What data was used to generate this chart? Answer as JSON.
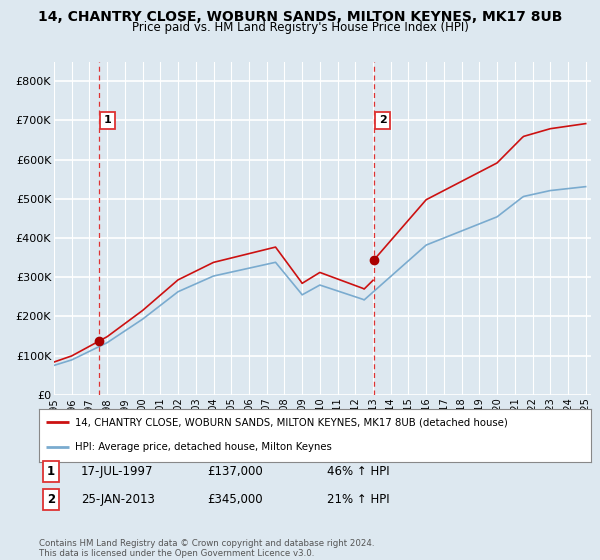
{
  "title": "14, CHANTRY CLOSE, WOBURN SANDS, MILTON KEYNES, MK17 8UB",
  "subtitle": "Price paid vs. HM Land Registry's House Price Index (HPI)",
  "bg_color": "#dde8f0",
  "plot_bg": "#dde8f0",
  "ylim": [
    0,
    850000
  ],
  "yticks": [
    0,
    100000,
    200000,
    300000,
    400000,
    500000,
    600000,
    700000,
    800000
  ],
  "ytick_labels": [
    "£0",
    "£100K",
    "£200K",
    "£300K",
    "£400K",
    "£500K",
    "£600K",
    "£700K",
    "£800K"
  ],
  "xlim_min": 1995.0,
  "xlim_max": 2025.3,
  "xtick_years": [
    1995,
    1996,
    1997,
    1998,
    1999,
    2000,
    2001,
    2002,
    2003,
    2004,
    2005,
    2006,
    2007,
    2008,
    2009,
    2010,
    2011,
    2012,
    2013,
    2014,
    2015,
    2016,
    2017,
    2018,
    2019,
    2020,
    2021,
    2022,
    2023,
    2024,
    2025
  ],
  "purchase1_x": 1997.54,
  "purchase1_y": 137000,
  "purchase2_x": 2013.07,
  "purchase2_y": 345000,
  "line_red_color": "#cc1111",
  "line_blue_color": "#7aabcf",
  "vline_color": "#dd3333",
  "marker_color": "#aa0000",
  "line1_label": "14, CHANTRY CLOSE, WOBURN SANDS, MILTON KEYNES, MK17 8UB (detached house)",
  "line2_label": "HPI: Average price, detached house, Milton Keynes",
  "ann1_label": "1",
  "ann1_date": "17-JUL-1997",
  "ann1_price": "£137,000",
  "ann1_hpi": "46% ↑ HPI",
  "ann2_label": "2",
  "ann2_date": "25-JAN-2013",
  "ann2_price": "£345,000",
  "ann2_hpi": "21% ↑ HPI",
  "footer": "Contains HM Land Registry data © Crown copyright and database right 2024.\nThis data is licensed under the Open Government Licence v3.0."
}
